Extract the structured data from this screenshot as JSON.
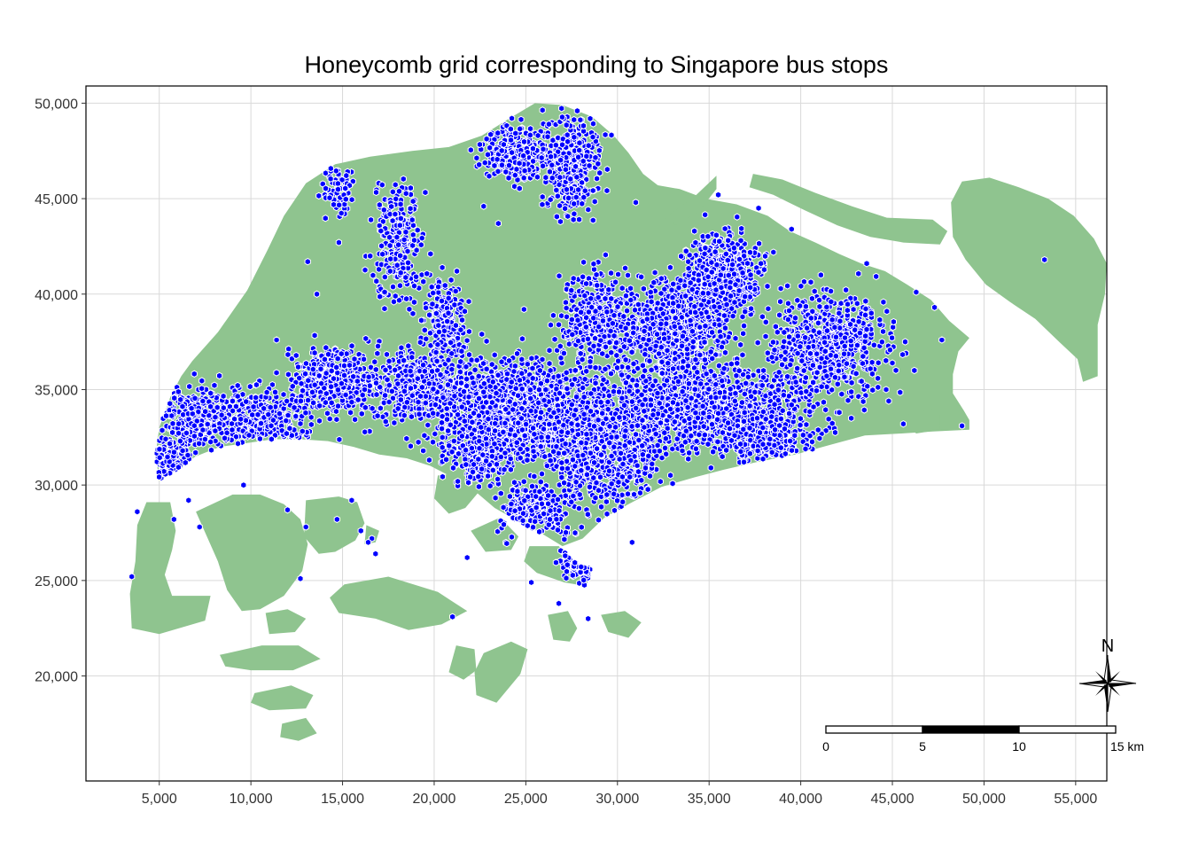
{
  "title": "Honeycomb grid corresponding to Singapore bus stops",
  "colors": {
    "land": "#8fc48f",
    "hex_fill": "#0000ff",
    "hex_border": "#ffffff",
    "grid": "#d9d9d9",
    "panel_border": "#000000"
  },
  "axes": {
    "x_ticks": [
      {
        "value": 5000,
        "label": "5,000"
      },
      {
        "value": 10000,
        "label": "10,000"
      },
      {
        "value": 15000,
        "label": "15,000"
      },
      {
        "value": 20000,
        "label": "20,000"
      },
      {
        "value": 25000,
        "label": "25,000"
      },
      {
        "value": 30000,
        "label": "30,000"
      },
      {
        "value": 35000,
        "label": "35,000"
      },
      {
        "value": 40000,
        "label": "40,000"
      },
      {
        "value": 45000,
        "label": "45,000"
      },
      {
        "value": 50000,
        "label": "50,000"
      },
      {
        "value": 55000,
        "label": "55,000"
      }
    ],
    "y_ticks": [
      {
        "value": 20000,
        "label": "20,000"
      },
      {
        "value": 25000,
        "label": "25,000"
      },
      {
        "value": 30000,
        "label": "30,000"
      },
      {
        "value": 35000,
        "label": "35,000"
      },
      {
        "value": 40000,
        "label": "40,000"
      },
      {
        "value": 45000,
        "label": "45,000"
      },
      {
        "value": 50000,
        "label": "50,000"
      }
    ],
    "xlim": [
      1000,
      56700
    ],
    "ylim": [
      14500,
      50900
    ]
  },
  "scale_bar": {
    "labels": [
      "0",
      "5",
      "10",
      "15 km"
    ],
    "start_km_x": 40000,
    "segment_m": 5000
  },
  "north_arrow": {
    "label": "N"
  },
  "regions": {
    "mainland": [
      [
        6800,
        36500
      ],
      [
        8200,
        38000
      ],
      [
        9800,
        40200
      ],
      [
        10900,
        42300
      ],
      [
        11800,
        44100
      ],
      [
        13000,
        45800
      ],
      [
        14600,
        46800
      ],
      [
        16500,
        47200
      ],
      [
        18800,
        47500
      ],
      [
        20800,
        47700
      ],
      [
        22600,
        48300
      ],
      [
        24100,
        49200
      ],
      [
        25500,
        50000
      ],
      [
        27000,
        49900
      ],
      [
        28600,
        49300
      ],
      [
        29800,
        48300
      ],
      [
        30600,
        47400
      ],
      [
        31400,
        46300
      ],
      [
        32200,
        45700
      ],
      [
        33400,
        45500
      ],
      [
        34800,
        45000
      ],
      [
        36500,
        44700
      ],
      [
        38200,
        44100
      ],
      [
        39400,
        43300
      ],
      [
        40800,
        42700
      ],
      [
        42100,
        42100
      ],
      [
        43300,
        41600
      ],
      [
        44600,
        41200
      ],
      [
        45800,
        40500
      ],
      [
        47100,
        39700
      ],
      [
        48100,
        38600
      ],
      [
        49200,
        37700
      ],
      [
        48600,
        37000
      ],
      [
        48300,
        35800
      ],
      [
        48300,
        34800
      ],
      [
        48900,
        33900
      ],
      [
        49200,
        33400
      ],
      [
        49200,
        32900
      ],
      [
        47200,
        32800
      ],
      [
        45500,
        32700
      ],
      [
        43500,
        32600
      ],
      [
        41600,
        32100
      ],
      [
        39700,
        31600
      ],
      [
        37600,
        31200
      ],
      [
        35800,
        30800
      ],
      [
        34200,
        30400
      ],
      [
        32400,
        29900
      ],
      [
        30600,
        29000
      ],
      [
        29300,
        28300
      ],
      [
        28100,
        27200
      ],
      [
        27000,
        26800
      ],
      [
        25800,
        27500
      ],
      [
        24600,
        28100
      ],
      [
        23300,
        28800
      ],
      [
        22200,
        29700
      ],
      [
        21000,
        30400
      ],
      [
        19800,
        31000
      ],
      [
        18500,
        31400
      ],
      [
        17000,
        31600
      ],
      [
        15600,
        32000
      ],
      [
        14200,
        32300
      ],
      [
        12700,
        32400
      ],
      [
        11200,
        32400
      ],
      [
        9800,
        32200
      ],
      [
        8300,
        32000
      ],
      [
        7000,
        31500
      ],
      [
        5700,
        30700
      ],
      [
        5000,
        30200
      ],
      [
        4800,
        31600
      ],
      [
        5000,
        33000
      ],
      [
        5600,
        34600
      ],
      [
        6200,
        35700
      ]
    ],
    "islands": [
      [
        [
          4300,
          29100
        ],
        [
          5600,
          29100
        ],
        [
          5900,
          27600
        ],
        [
          5700,
          26600
        ],
        [
          5300,
          25300
        ],
        [
          5700,
          24200
        ],
        [
          7800,
          24200
        ],
        [
          7500,
          22900
        ],
        [
          5000,
          22200
        ],
        [
          3500,
          22500
        ],
        [
          3400,
          24300
        ],
        [
          3700,
          26000
        ],
        [
          3800,
          27900
        ]
      ],
      [
        [
          7000,
          28600
        ],
        [
          9000,
          29500
        ],
        [
          10500,
          29500
        ],
        [
          11800,
          29000
        ],
        [
          12700,
          28200
        ],
        [
          13100,
          26900
        ],
        [
          12800,
          25500
        ],
        [
          11800,
          24200
        ],
        [
          10500,
          23500
        ],
        [
          9500,
          23400
        ],
        [
          8700,
          24500
        ],
        [
          8200,
          26000
        ]
      ],
      [
        [
          13000,
          29200
        ],
        [
          14800,
          29400
        ],
        [
          15800,
          29100
        ],
        [
          16200,
          28000
        ],
        [
          15700,
          27100
        ],
        [
          14600,
          26500
        ],
        [
          13700,
          26400
        ],
        [
          12900,
          27300
        ]
      ],
      [
        [
          16300,
          27900
        ],
        [
          17000,
          27600
        ],
        [
          16800,
          27000
        ],
        [
          16200,
          26900
        ]
      ],
      [
        [
          20200,
          30500
        ],
        [
          21800,
          30700
        ],
        [
          22400,
          29600
        ],
        [
          21700,
          28800
        ],
        [
          20800,
          28500
        ],
        [
          20000,
          29300
        ]
      ],
      [
        [
          22000,
          27600
        ],
        [
          23600,
          28300
        ],
        [
          24600,
          27300
        ],
        [
          24200,
          26600
        ],
        [
          22800,
          26500
        ]
      ],
      [
        [
          25200,
          26800
        ],
        [
          26800,
          26800
        ],
        [
          27600,
          26000
        ],
        [
          28600,
          25600
        ],
        [
          28300,
          24700
        ],
        [
          27100,
          24900
        ],
        [
          25600,
          25400
        ],
        [
          24900,
          26000
        ]
      ],
      [
        [
          15100,
          24800
        ],
        [
          17500,
          25200
        ],
        [
          20200,
          24400
        ],
        [
          21800,
          23400
        ],
        [
          20400,
          22700
        ],
        [
          18600,
          22400
        ],
        [
          16800,
          23000
        ],
        [
          14800,
          23300
        ],
        [
          14300,
          24100
        ]
      ],
      [
        [
          10800,
          23300
        ],
        [
          12000,
          23500
        ],
        [
          13000,
          23000
        ],
        [
          12400,
          22300
        ],
        [
          11000,
          22200
        ]
      ],
      [
        [
          8300,
          21100
        ],
        [
          10600,
          21600
        ],
        [
          12600,
          21600
        ],
        [
          13800,
          20900
        ],
        [
          12300,
          20300
        ],
        [
          10000,
          20300
        ],
        [
          8600,
          20500
        ]
      ],
      [
        [
          10200,
          19100
        ],
        [
          12200,
          19500
        ],
        [
          13400,
          19000
        ],
        [
          13000,
          18300
        ],
        [
          11000,
          18200
        ],
        [
          10000,
          18600
        ]
      ],
      [
        [
          11700,
          17500
        ],
        [
          13000,
          17800
        ],
        [
          13600,
          17000
        ],
        [
          12600,
          16600
        ],
        [
          11600,
          16800
        ]
      ],
      [
        [
          21200,
          21600
        ],
        [
          22200,
          21400
        ],
        [
          22300,
          20300
        ],
        [
          21600,
          19800
        ],
        [
          20800,
          20200
        ]
      ],
      [
        [
          22700,
          21200
        ],
        [
          24200,
          21800
        ],
        [
          25100,
          21400
        ],
        [
          24700,
          20100
        ],
        [
          23400,
          18600
        ],
        [
          22300,
          19000
        ],
        [
          22200,
          20200
        ]
      ],
      [
        [
          26200,
          23200
        ],
        [
          27300,
          23400
        ],
        [
          27800,
          22500
        ],
        [
          27400,
          21800
        ],
        [
          26500,
          21900
        ]
      ],
      [
        [
          29100,
          23200
        ],
        [
          30400,
          23400
        ],
        [
          31300,
          22800
        ],
        [
          30600,
          22000
        ],
        [
          29500,
          22300
        ]
      ],
      [
        [
          48800,
          45900
        ],
        [
          50300,
          46100
        ],
        [
          51900,
          45600
        ],
        [
          53500,
          45000
        ],
        [
          54900,
          44100
        ],
        [
          56000,
          42900
        ],
        [
          56700,
          41600
        ],
        [
          56600,
          40000
        ],
        [
          56200,
          38400
        ],
        [
          56200,
          37100
        ],
        [
          56200,
          35700
        ],
        [
          55400,
          35400
        ],
        [
          55100,
          36600
        ],
        [
          54100,
          37500
        ],
        [
          52800,
          38700
        ],
        [
          51400,
          39600
        ],
        [
          50100,
          40500
        ],
        [
          49000,
          41800
        ],
        [
          48300,
          43000
        ],
        [
          48200,
          44800
        ]
      ],
      [
        [
          37400,
          46300
        ],
        [
          39000,
          46000
        ],
        [
          40800,
          45300
        ],
        [
          42800,
          44600
        ],
        [
          44700,
          44000
        ],
        [
          47200,
          43900
        ],
        [
          48000,
          43300
        ],
        [
          47600,
          42600
        ],
        [
          45600,
          42700
        ],
        [
          43800,
          43000
        ],
        [
          42000,
          43600
        ],
        [
          40200,
          44400
        ],
        [
          38500,
          45200
        ],
        [
          37200,
          45600
        ]
      ],
      [
        [
          32600,
          44000
        ],
        [
          34200,
          45100
        ],
        [
          35400,
          46200
        ],
        [
          35400,
          45500
        ],
        [
          34400,
          44300
        ],
        [
          33200,
          43600
        ]
      ],
      [
        [
          45900,
          33700
        ],
        [
          47200,
          34000
        ],
        [
          47600,
          33700
        ],
        [
          47600,
          32900
        ],
        [
          46300,
          32700
        ],
        [
          45800,
          33100
        ]
      ]
    ]
  },
  "hexes": [
    {
      "cx": 24500,
      "cy": 33800,
      "rx": 4200,
      "ry": 2400,
      "n": 1400
    },
    {
      "cx": 34800,
      "cy": 34000,
      "rx": 5300,
      "ry": 2100,
      "n": 1300
    },
    {
      "cx": 33300,
      "cy": 38200,
      "rx": 2700,
      "ry": 2300,
      "n": 750
    },
    {
      "cx": 35800,
      "cy": 40900,
      "rx": 2000,
      "ry": 2100,
      "n": 500
    },
    {
      "cx": 41600,
      "cy": 37300,
      "rx": 2800,
      "ry": 2300,
      "n": 650
    },
    {
      "cx": 29400,
      "cy": 31800,
      "rx": 2600,
      "ry": 2800,
      "n": 700
    },
    {
      "cx": 28800,
      "cy": 38800,
      "rx": 1700,
      "ry": 2200,
      "n": 380
    },
    {
      "cx": 19200,
      "cy": 35300,
      "rx": 3100,
      "ry": 1800,
      "n": 480
    },
    {
      "cx": 14300,
      "cy": 35500,
      "rx": 2100,
      "ry": 1500,
      "n": 380
    },
    {
      "cx": 10400,
      "cy": 33400,
      "rx": 2700,
      "ry": 1500,
      "n": 360
    },
    {
      "cx": 6800,
      "cy": 33600,
      "rx": 1700,
      "ry": 1500,
      "n": 230
    },
    {
      "cx": 5700,
      "cy": 31100,
      "rx": 1100,
      "ry": 1300,
      "n": 130
    },
    {
      "cx": 20600,
      "cy": 38700,
      "rx": 1000,
      "ry": 1800,
      "n": 200
    },
    {
      "cx": 18000,
      "cy": 42800,
      "rx": 1200,
      "ry": 2900,
      "n": 230
    },
    {
      "cx": 24500,
      "cy": 47400,
      "rx": 1700,
      "ry": 1300,
      "n": 300
    },
    {
      "cx": 27600,
      "cy": 46800,
      "rx": 1400,
      "ry": 2300,
      "n": 320
    },
    {
      "cx": 14800,
      "cy": 45500,
      "rx": 800,
      "ry": 1300,
      "n": 70
    },
    {
      "cx": 25500,
      "cy": 28700,
      "rx": 1800,
      "ry": 1300,
      "n": 220
    },
    {
      "cx": 28300,
      "cy": 26100,
      "rx": 1200,
      "ry": 900,
      "n": 90
    },
    {
      "cx": 38300,
      "cy": 32200,
      "rx": 1800,
      "ry": 900,
      "n": 200
    },
    {
      "cx": 22600,
      "cy": 31200,
      "rx": 1300,
      "ry": 1000,
      "n": 180
    }
  ],
  "stray_hexes": [
    [
      13100,
      41700
    ],
    [
      14800,
      42700
    ],
    [
      13600,
      40000
    ],
    [
      11400,
      37600
    ],
    [
      9000,
      34400
    ],
    [
      9600,
      30000
    ],
    [
      5800,
      28200
    ],
    [
      7200,
      27800
    ],
    [
      6600,
      29200
    ],
    [
      3800,
      28600
    ],
    [
      3500,
      25200
    ],
    [
      12000,
      28700
    ],
    [
      13000,
      27800
    ],
    [
      12700,
      25100
    ],
    [
      14700,
      28200
    ],
    [
      15500,
      29200
    ],
    [
      16000,
      27600
    ],
    [
      16600,
      27200
    ],
    [
      16800,
      26400
    ],
    [
      16400,
      27000
    ],
    [
      22700,
      44600
    ],
    [
      23500,
      43700
    ],
    [
      27600,
      43900
    ],
    [
      31300,
      40900
    ],
    [
      34200,
      43300
    ],
    [
      37700,
      44500
    ],
    [
      39500,
      43400
    ],
    [
      41100,
      41000
    ],
    [
      43600,
      41600
    ],
    [
      46300,
      40100
    ],
    [
      47300,
      39300
    ],
    [
      44700,
      39100
    ],
    [
      45700,
      37500
    ],
    [
      46200,
      36000
    ],
    [
      47700,
      37600
    ],
    [
      45600,
      33200
    ],
    [
      44800,
      34400
    ],
    [
      48800,
      33100
    ],
    [
      53300,
      41800
    ],
    [
      24900,
      39200
    ],
    [
      22600,
      37900
    ],
    [
      17600,
      41200
    ],
    [
      21800,
      26200
    ],
    [
      25300,
      24900
    ],
    [
      26800,
      23800
    ],
    [
      28400,
      23000
    ],
    [
      21000,
      23100
    ],
    [
      30800,
      27000
    ],
    [
      35100,
      30900
    ],
    [
      36900,
      31200
    ],
    [
      42100,
      33800
    ],
    [
      40300,
      34900
    ],
    [
      39500,
      34200
    ],
    [
      35500,
      45200
    ],
    [
      31000,
      44800
    ]
  ]
}
